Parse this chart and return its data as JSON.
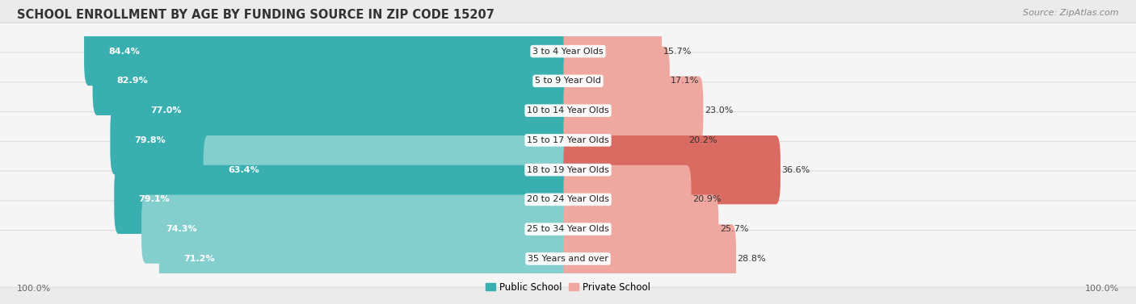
{
  "title": "SCHOOL ENROLLMENT BY AGE BY FUNDING SOURCE IN ZIP CODE 15207",
  "source": "Source: ZipAtlas.com",
  "categories": [
    "3 to 4 Year Olds",
    "5 to 9 Year Old",
    "10 to 14 Year Olds",
    "15 to 17 Year Olds",
    "18 to 19 Year Olds",
    "20 to 24 Year Olds",
    "25 to 34 Year Olds",
    "35 Years and over"
  ],
  "public_values": [
    84.4,
    82.9,
    77.0,
    79.8,
    63.4,
    79.1,
    74.3,
    71.2
  ],
  "private_values": [
    15.7,
    17.1,
    23.0,
    20.2,
    36.6,
    20.9,
    25.7,
    28.8
  ],
  "public_color_dark": "#3AAFAF",
  "public_color_light": "#85CECE",
  "private_color_dark": "#D96B63",
  "private_color_light": "#EFA89F",
  "background_color": "#EBEBEB",
  "row_bg_color": "#F5F5F5",
  "row_border_color": "#DDDDDD",
  "title_fontsize": 10.5,
  "label_fontsize": 8,
  "value_fontsize": 8,
  "legend_fontsize": 8.5,
  "source_fontsize": 8,
  "axis_label_fontsize": 8,
  "dark_threshold_pub": 75.0,
  "dark_threshold_priv": 30.0
}
